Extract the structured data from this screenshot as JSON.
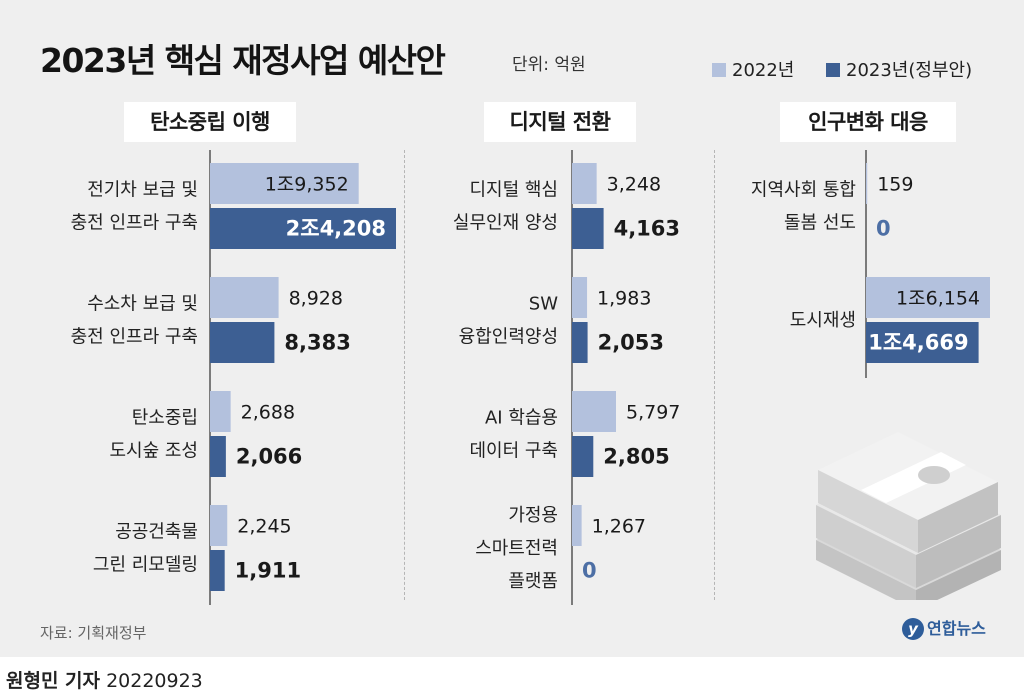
{
  "title": "2023년 핵심 재정사업 예산안",
  "unit": "단위: 억원",
  "legend": {
    "s2022": "2022년",
    "s2023": "2023년(정부안)"
  },
  "colors": {
    "s2022": "#b3c1dd",
    "s2023": "#3d5f93",
    "zero_text": "#4d6fa5"
  },
  "source": "자료: 기획재정부",
  "logo": "연합뉴스",
  "byline": {
    "name": "원형민 기자",
    "date": "20220923"
  },
  "chart_data": [
    {
      "type": "bar",
      "orientation": "horizontal",
      "title": "탄소중립 이행",
      "categories": [
        [
          "전기차 보급 및",
          "충전 인프라 구축"
        ],
        [
          "수소차 보급 및",
          "충전 인프라 구축"
        ],
        [
          "탄소중립",
          "도시숲 조성"
        ],
        [
          "공공건축물",
          "그린 리모델링"
        ]
      ],
      "series": [
        {
          "name": "2022년",
          "values": [
            19352,
            8928,
            2688,
            2245
          ],
          "labels": [
            "1조9,352",
            "8,928",
            "2,688",
            "2,245"
          ]
        },
        {
          "name": "2023년(정부안)",
          "values": [
            24208,
            8383,
            2066,
            1911
          ],
          "labels": [
            "2조4,208",
            "8,383",
            "2,066",
            "1,911"
          ]
        }
      ]
    },
    {
      "type": "bar",
      "orientation": "horizontal",
      "title": "디지털 전환",
      "categories": [
        [
          "디지털 핵심",
          "실무인재 양성"
        ],
        [
          "SW",
          "융합인력양성"
        ],
        [
          "AI 학습용",
          "데이터 구축"
        ],
        [
          "가정용",
          "스마트전력",
          "플랫폼"
        ]
      ],
      "series": [
        {
          "name": "2022년",
          "values": [
            3248,
            1983,
            5797,
            1267
          ],
          "labels": [
            "3,248",
            "1,983",
            "5,797",
            "1,267"
          ]
        },
        {
          "name": "2023년(정부안)",
          "values": [
            4163,
            2053,
            2805,
            0
          ],
          "labels": [
            "4,163",
            "2,053",
            "2,805",
            "0"
          ]
        }
      ]
    },
    {
      "type": "bar",
      "orientation": "horizontal",
      "title": "인구변화 대응",
      "categories": [
        [
          "지역사회 통합",
          "돌봄 선도"
        ],
        [
          "도시재생"
        ]
      ],
      "series": [
        {
          "name": "2022년",
          "values": [
            159,
            16154
          ],
          "labels": [
            "159",
            "1조6,154"
          ]
        },
        {
          "name": "2023년(정부안)",
          "values": [
            0,
            14669
          ],
          "labels": [
            "0",
            "1조4,669"
          ]
        }
      ]
    }
  ]
}
